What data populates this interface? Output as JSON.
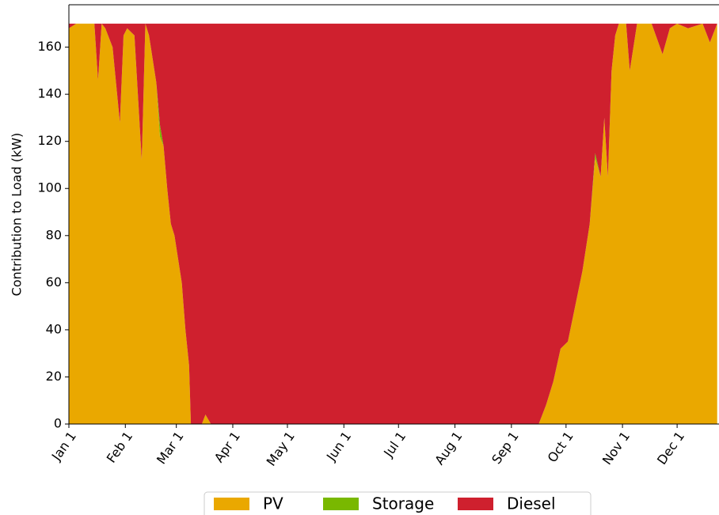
{
  "chart_data": {
    "type": "stacked_area",
    "ylabel": "Contribution to Load (kW)",
    "x": [
      0,
      4,
      8,
      14,
      16,
      18,
      20,
      24,
      28,
      30,
      32,
      36,
      40,
      42,
      44,
      48,
      50,
      52,
      54,
      56,
      58,
      60,
      62,
      64,
      66,
      67,
      70,
      73,
      75,
      78,
      120,
      180,
      240,
      258,
      262,
      266,
      270,
      274,
      278,
      282,
      286,
      289,
      292,
      294,
      296,
      298,
      300,
      302,
      306,
      308,
      312,
      320,
      326,
      330,
      334,
      340,
      348,
      352,
      356
    ],
    "series": [
      {
        "name": "PV",
        "color": "#eaa800",
        "values": [
          168,
          170,
          170,
          170,
          146,
          170,
          168,
          160,
          128,
          165,
          168,
          165,
          112,
          170,
          165,
          145,
          122,
          118,
          100,
          85,
          80,
          70,
          60,
          40,
          25,
          0,
          0,
          0,
          4,
          0,
          0,
          0,
          0,
          0,
          8,
          18,
          32,
          35,
          50,
          65,
          85,
          113,
          105,
          130,
          105,
          150,
          165,
          170,
          170,
          150,
          170,
          170,
          157,
          168,
          170,
          168,
          170,
          162,
          170
        ]
      },
      {
        "name": "Storage",
        "color": "#79b800",
        "values": [
          0,
          0,
          0,
          0,
          0,
          0,
          0,
          0,
          0,
          0,
          0,
          0,
          0,
          0,
          0,
          0,
          5,
          0,
          0,
          0,
          0,
          0,
          0,
          0,
          0,
          0,
          0,
          0,
          0,
          0,
          0,
          0,
          0,
          0,
          0,
          0,
          0,
          0,
          0,
          0,
          0,
          2,
          0,
          0,
          0,
          0,
          0,
          0,
          0,
          0,
          0,
          0,
          0,
          0,
          0,
          0,
          0,
          0,
          0
        ]
      },
      {
        "name": "Diesel",
        "color": "#cf202e",
        "values": [
          2,
          0,
          0,
          0,
          24,
          0,
          2,
          10,
          42,
          5,
          2,
          5,
          58,
          0,
          5,
          25,
          43,
          52,
          70,
          85,
          90,
          100,
          110,
          130,
          145,
          170,
          170,
          170,
          166,
          170,
          170,
          170,
          170,
          170,
          162,
          152,
          138,
          135,
          120,
          105,
          85,
          55,
          65,
          40,
          65,
          20,
          5,
          0,
          0,
          20,
          0,
          0,
          13,
          2,
          0,
          2,
          0,
          8,
          0
        ]
      }
    ],
    "xlim": [
      0,
      357
    ],
    "xticks": [
      {
        "value": 0,
        "label": "Jan 1"
      },
      {
        "value": 31,
        "label": "Feb 1"
      },
      {
        "value": 59,
        "label": "Mar 1"
      },
      {
        "value": 90,
        "label": "Apr 1"
      },
      {
        "value": 120,
        "label": "May 1"
      },
      {
        "value": 151,
        "label": "Jun 1"
      },
      {
        "value": 181,
        "label": "Jul 1"
      },
      {
        "value": 212,
        "label": "Aug 1"
      },
      {
        "value": 243,
        "label": "Sep 1"
      },
      {
        "value": 273,
        "label": "Oct 1"
      },
      {
        "value": 304,
        "label": "Nov 1"
      },
      {
        "value": 334,
        "label": "Dec 1"
      }
    ],
    "ylim": [
      0,
      178
    ],
    "yticks": [
      0,
      20,
      40,
      60,
      80,
      100,
      120,
      140,
      160
    ],
    "legend": "bottom"
  }
}
